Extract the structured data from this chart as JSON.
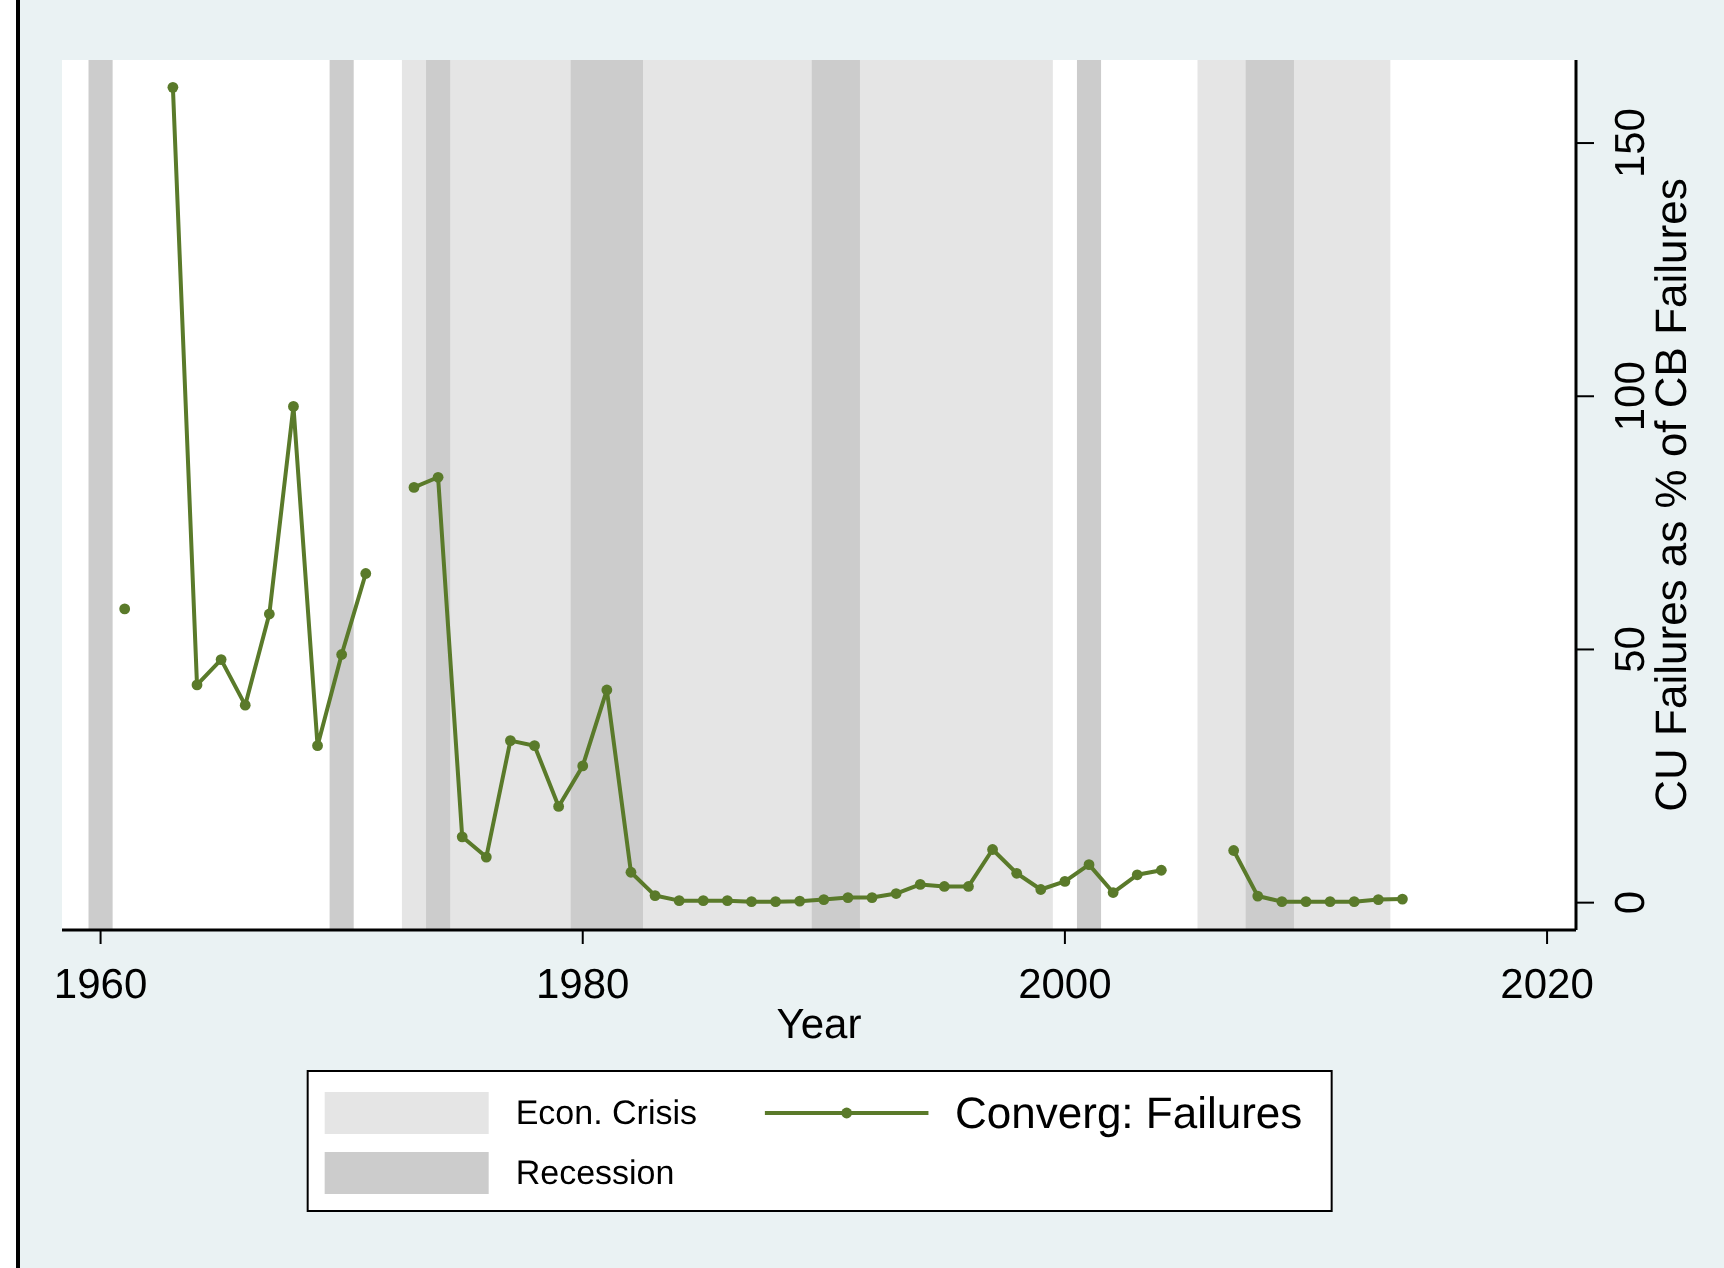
{
  "chart_data": {
    "type": "line",
    "xlabel": "Year",
    "y2label": "CU Failures as % of CB Failures",
    "x": [
      1961,
      1962,
      1963,
      1964,
      1965,
      1966,
      1967,
      1968,
      1969,
      1970,
      1971,
      1972,
      1973,
      1974,
      1975,
      1976,
      1977,
      1978,
      1979,
      1980,
      1981,
      1982,
      1983,
      1984,
      1985,
      1986,
      1987,
      1988,
      1989,
      1990,
      1991,
      1992,
      1993,
      1994,
      1995,
      1996,
      1997,
      1998,
      1999,
      2000,
      2001,
      2002,
      2003,
      2004,
      2005,
      2006,
      2007,
      2008,
      2009,
      2010,
      2011,
      2012,
      2013,
      2014
    ],
    "series": [
      {
        "name": "Converg: Failures",
        "color": "#5a7a2a",
        "axis": "y2",
        "values": [
          58,
          null,
          161,
          43,
          48,
          39,
          57,
          98,
          31,
          49,
          65,
          null,
          82,
          84,
          13,
          9,
          32,
          31,
          19,
          27,
          42,
          6,
          1.4,
          0.4,
          0.4,
          0.4,
          0.2,
          0.2,
          0.3,
          0.6,
          1,
          1,
          1.8,
          3.6,
          3.2,
          3.2,
          10.5,
          5.8,
          2.6,
          4.2,
          7.5,
          2,
          5.5,
          6.4,
          null,
          null,
          10.3,
          1.3,
          0.2,
          0.2,
          0.2,
          0.2,
          0.6,
          0.7
        ]
      }
    ],
    "xlim": [
      1958.4,
      2021.2
    ],
    "xticks": [
      1960,
      1980,
      2000,
      2020
    ],
    "y2lim": [
      -5.4,
      166.4
    ],
    "y2ticks": [
      0,
      50,
      100,
      150
    ],
    "bands": [
      {
        "axis": "x",
        "from": 1972.5,
        "to": 1999.5,
        "label": "Econ. Crisis",
        "color": "#e5e5e5"
      },
      {
        "axis": "x",
        "from": 2005.5,
        "to": 2013.5,
        "color": "#e5e5e5"
      },
      {
        "axis": "x",
        "from": 1959.5,
        "to": 1960.5,
        "label": "Recession",
        "color": "#cccccc"
      },
      {
        "axis": "x",
        "from": 1969.5,
        "to": 1970.5,
        "color": "#cccccc"
      },
      {
        "axis": "x",
        "from": 1973.5,
        "to": 1974.5,
        "color": "#cccccc"
      },
      {
        "axis": "x",
        "from": 1979.5,
        "to": 1982.5,
        "color": "#cccccc"
      },
      {
        "axis": "x",
        "from": 1989.5,
        "to": 1991.5,
        "color": "#cccccc"
      },
      {
        "axis": "x",
        "from": 2000.5,
        "to": 2001.5,
        "color": "#cccccc"
      },
      {
        "axis": "x",
        "from": 2007.5,
        "to": 2009.5,
        "color": "#cccccc"
      }
    ],
    "legend": "bottom",
    "marker": "circle",
    "line_style": "solid"
  }
}
